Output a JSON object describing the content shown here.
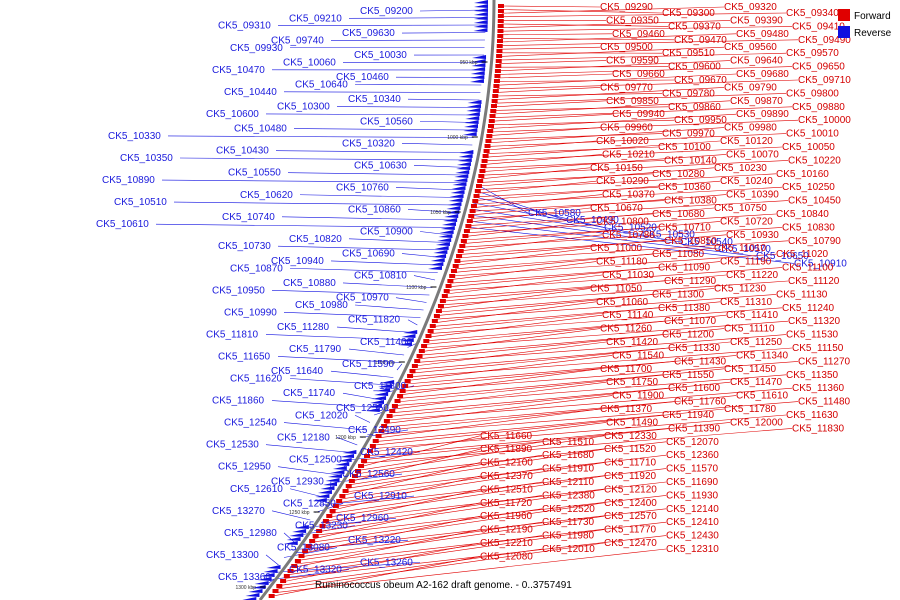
{
  "title": "Ruminococcus obeum A2-162 draft genome. - 0..3757491",
  "legend": [
    {
      "label": "Forward",
      "color": "#e00000"
    },
    {
      "label": "Reverse",
      "color": "#1010e0"
    }
  ],
  "colors": {
    "forward": "#e00000",
    "reverse": "#1010e0",
    "backbone": "#7a7a7a"
  },
  "ticks": [
    "950 kbp",
    "1000 kbp",
    "1050 kbp",
    "1100 kbp",
    "1150 kbp",
    "1200 kbp",
    "1250 kbp",
    "1300 kbp"
  ],
  "reverse_labels": [
    "CK5_09200",
    "CK5_09210",
    "CK5_09310",
    "CK5_09630",
    "CK5_09740",
    "CK5_09930",
    "CK5_10030",
    "CK5_10060",
    "CK5_10470",
    "CK5_10460",
    "CK5_10640",
    "CK5_10440",
    "CK5_10340",
    "CK5_10300",
    "CK5_10600",
    "CK5_10560",
    "CK5_10480",
    "CK5_10330",
    "CK5_10320",
    "CK5_10430",
    "CK5_10350",
    "CK5_10630",
    "CK5_10550",
    "CK5_10890",
    "CK5_10760",
    "CK5_10620",
    "CK5_10510",
    "CK5_10860",
    "CK5_10740",
    "CK5_10610",
    "CK5_10900",
    "CK5_10820",
    "CK5_10730",
    "CK5_10690",
    "CK5_10940",
    "CK5_10870",
    "CK5_10810",
    "CK5_10880",
    "CK5_10950",
    "CK5_10970",
    "CK5_10980",
    "CK5_10990",
    "CK5_11820",
    "CK5_11280",
    "CK5_11810",
    "CK5_11400",
    "CK5_11790",
    "CK5_11650",
    "CK5_11590",
    "CK5_11640",
    "CK5_11620",
    "CK5_11800",
    "CK5_11740",
    "CK5_11860",
    "CK5_12550",
    "CK5_12020",
    "CK5_12540",
    "CK5_12490",
    "CK5_12180",
    "CK5_12530",
    "CK5_12420",
    "CK5_12500",
    "CK5_12950",
    "CK5_12560",
    "CK5_12930",
    "CK5_12610",
    "CK5_12910",
    "CK5_12850",
    "CK5_13270",
    "CK5_12960",
    "CK5_13230",
    "CK5_12980",
    "CK5_13220",
    "CK5_13080",
    "CK5_13300",
    "CK5_13260",
    "CK5_13320",
    "CK5_13360",
    "CK5_10580",
    "CK5_10490",
    "CK5_10520",
    "CK5_10530",
    "CK5_10540",
    "CK5_10570",
    "CK5_10650",
    "CK5_10910"
  ],
  "forward_labels": [
    "CK5_09290",
    "CK5_09300",
    "CK5_09320",
    "CK5_09340",
    "CK5_09350",
    "CK5_09370",
    "CK5_09390",
    "CK5_09410",
    "CK5_09460",
    "CK5_09470",
    "CK5_09480",
    "CK5_09490",
    "CK5_09500",
    "CK5_09510",
    "CK5_09560",
    "CK5_09570",
    "CK5_09590",
    "CK5_09600",
    "CK5_09640",
    "CK5_09650",
    "CK5_09660",
    "CK5_09670",
    "CK5_09680",
    "CK5_09710",
    "CK5_09770",
    "CK5_09780",
    "CK5_09790",
    "CK5_09800",
    "CK5_09850",
    "CK5_09860",
    "CK5_09870",
    "CK5_09880",
    "CK5_09940",
    "CK5_09950",
    "CK5_09890",
    "CK5_10000",
    "CK5_09960",
    "CK5_09970",
    "CK5_09980",
    "CK5_10010",
    "CK5_10020",
    "CK5_10100",
    "CK5_10120",
    "CK5_10050",
    "CK5_10210",
    "CK5_10140",
    "CK5_10070",
    "CK5_10220",
    "CK5_10150",
    "CK5_10280",
    "CK5_10230",
    "CK5_10160",
    "CK5_10290",
    "CK5_10360",
    "CK5_10240",
    "CK5_10250",
    "CK5_10370",
    "CK5_10380",
    "CK5_10390",
    "CK5_10450",
    "CK5_10670",
    "CK5_10680",
    "CK5_10750",
    "CK5_10840",
    "CK5_10800",
    "CK5_10710",
    "CK5_10720",
    "CK5_10830",
    "CK5_10780",
    "CK5_10850",
    "CK5_10930",
    "CK5_10790",
    "CK5_11000",
    "CK5_11080",
    "CK5_11010",
    "CK5_11020",
    "CK5_11180",
    "CK5_11090",
    "CK5_11190",
    "CK5_11100",
    "CK5_11030",
    "CK5_11290",
    "CK5_11220",
    "CK5_11120",
    "CK5_11050",
    "CK5_11300",
    "CK5_11230",
    "CK5_11130",
    "CK5_11060",
    "CK5_11380",
    "CK5_11310",
    "CK5_11240",
    "CK5_11140",
    "CK5_11070",
    "CK5_11410",
    "CK5_11320",
    "CK5_11260",
    "CK5_11200",
    "CK5_11110",
    "CK5_11530",
    "CK5_11420",
    "CK5_11330",
    "CK5_11250",
    "CK5_11150",
    "CK5_11540",
    "CK5_11430",
    "CK5_11340",
    "CK5_11270",
    "CK5_11700",
    "CK5_11550",
    "CK5_11450",
    "CK5_11350",
    "CK5_11750",
    "CK5_11600",
    "CK5_11470",
    "CK5_11360",
    "CK5_11900",
    "CK5_11760",
    "CK5_11610",
    "CK5_11480",
    "CK5_11370",
    "CK5_11940",
    "CK5_11780",
    "CK5_11630",
    "CK5_11490",
    "CK5_11390",
    "CK5_12000",
    "CK5_11830",
    "CK5_11660",
    "CK5_11510",
    "CK5_12330",
    "CK5_12070",
    "CK5_11890",
    "CK5_11680",
    "CK5_11520",
    "CK5_12360",
    "CK5_12100",
    "CK5_11910",
    "CK5_11710",
    "CK5_11570",
    "CK5_12370",
    "CK5_12110",
    "CK5_11920",
    "CK5_11690",
    "CK5_12510",
    "CK5_12380",
    "CK5_12120",
    "CK5_11930",
    "CK5_11720",
    "CK5_12520",
    "CK5_12400",
    "CK5_12140",
    "CK5_11960",
    "CK5_11730",
    "CK5_12570",
    "CK5_12410",
    "CK5_12190",
    "CK5_11980",
    "CK5_11770",
    "CK5_12430",
    "CK5_12210",
    "CK5_12010",
    "CK5_12470",
    "CK5_12310",
    "CK5_12080"
  ]
}
